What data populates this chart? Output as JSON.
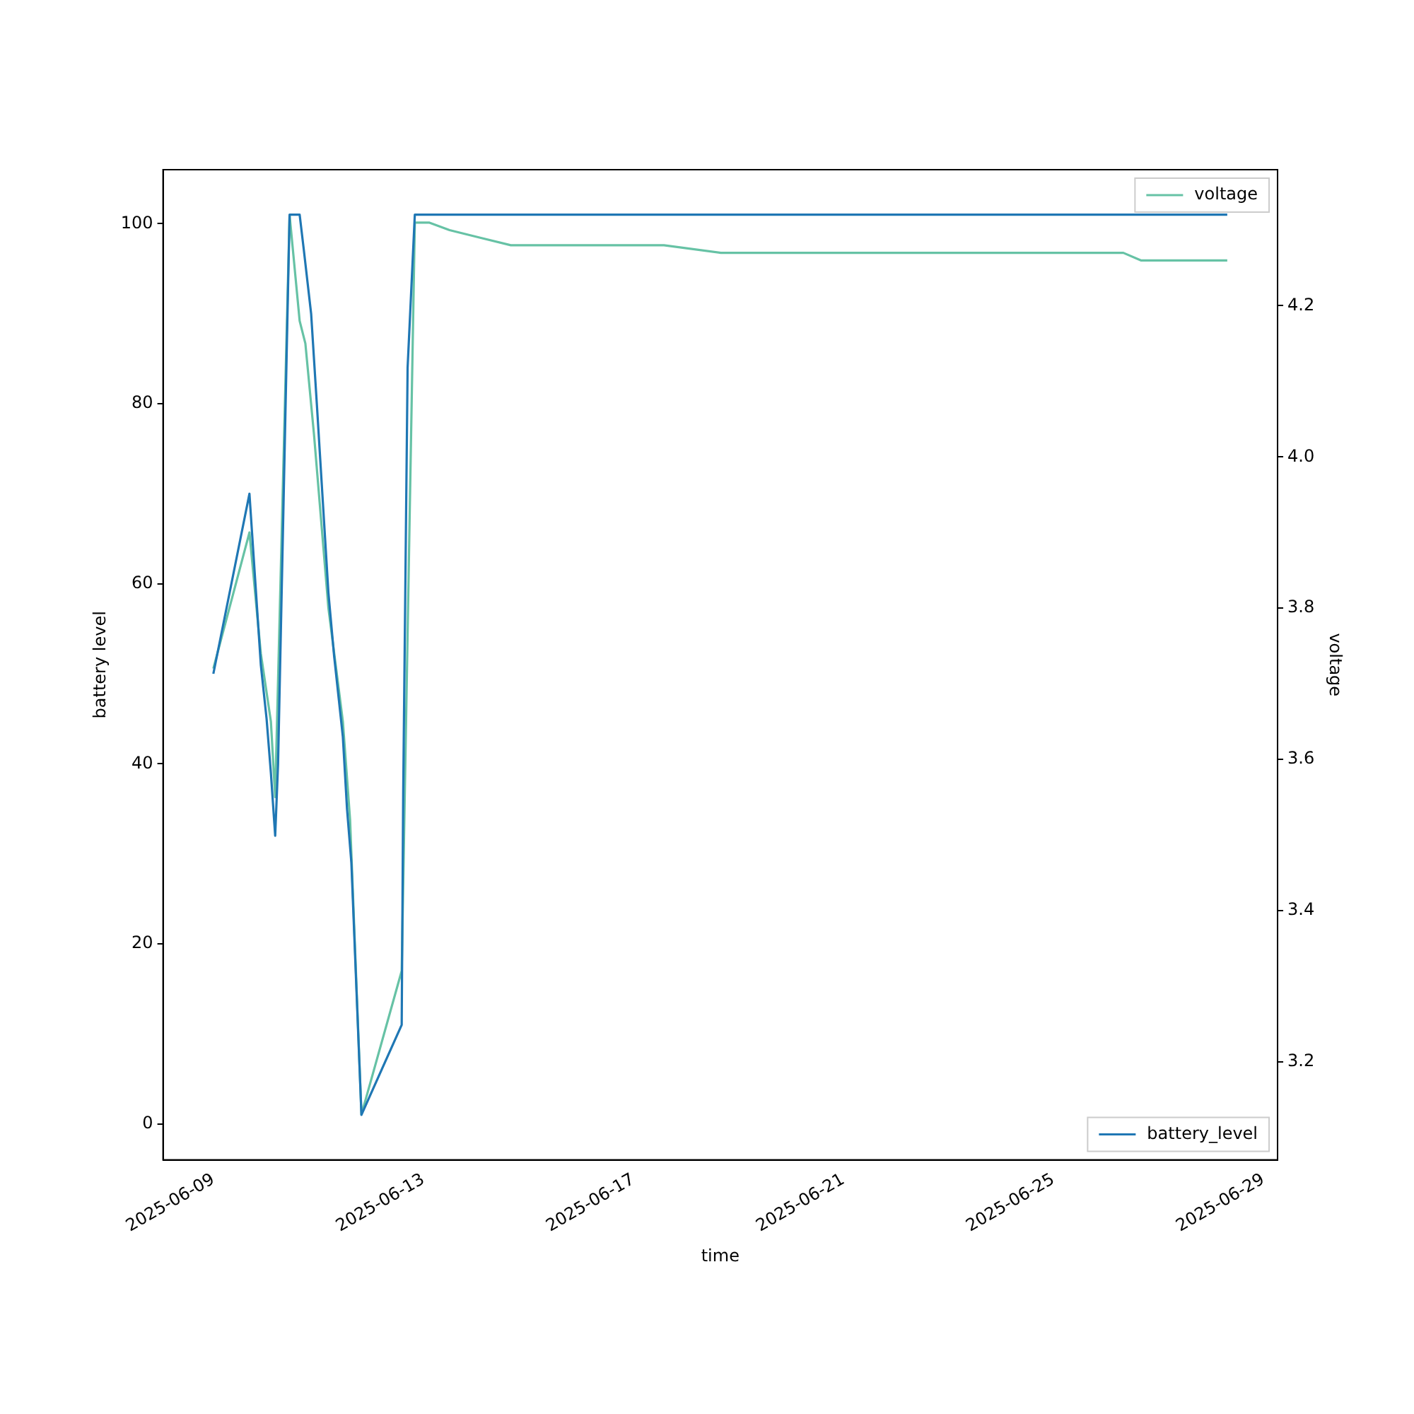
{
  "chart_data": {
    "type": "line",
    "xlabel": "time",
    "ylabel": "battery level",
    "y2label": "voltage",
    "xlim": [
      "2025-06-08T01:00",
      "2025-06-29T06:30"
    ],
    "xticks": [
      "2025-06-09",
      "2025-06-13",
      "2025-06-17",
      "2025-06-21",
      "2025-06-25",
      "2025-06-29"
    ],
    "ylim": [
      -4,
      106
    ],
    "yticks": [
      0,
      20,
      40,
      60,
      80,
      100
    ],
    "y2lim": [
      3.07,
      4.38
    ],
    "y2ticks": [
      3.2,
      3.4,
      3.6,
      3.8,
      {
        "value": 4.0,
        "label": "4.0"
      },
      4.2
    ],
    "legend": "right",
    "grid": false,
    "marker": "none",
    "line_style": "solid",
    "series": [
      {
        "name": "battery_level",
        "color": "#1f77b4",
        "axis": "y",
        "x": [
          "2025-06-09T00:00",
          "2025-06-09T16:30",
          "2025-06-09T21:42",
          "2025-06-10T00:20",
          "2025-06-10T02:18",
          "2025-06-10T04:16",
          "2025-06-10T05:35",
          "2025-06-10T10:51",
          "2025-06-10T15:27",
          "2025-06-10T17:24",
          "2025-06-10T20:42",
          "2025-06-10T23:18",
          "2025-06-11T04:36",
          "2025-06-11T07:12",
          "2025-06-11T11:12",
          "2025-06-11T13:06",
          "2025-06-11T15:06",
          "2025-06-11T19:42",
          "2025-06-12T14:06",
          "2025-06-12T14:48",
          "2025-06-12T16:48",
          "2025-06-12T20:06",
          "2025-06-28T07:30"
        ],
        "values": [
          50,
          70,
          51,
          45,
          39,
          32,
          40,
          101,
          101,
          97,
          90,
          80,
          59,
          52,
          43,
          35,
          29,
          1,
          11,
          37,
          84,
          101,
          101
        ]
      },
      {
        "name": "voltage",
        "color": "#66c2a5",
        "axis": "y2",
        "x": [
          "2025-06-09T00:00",
          "2025-06-09T16:30",
          "2025-06-09T21:42",
          "2025-06-10T02:18",
          "2025-06-10T04:16",
          "2025-06-10T10:51",
          "2025-06-10T15:27",
          "2025-06-10T18:04",
          "2025-06-10T22:00",
          "2025-06-11T04:36",
          "2025-06-11T08:34",
          "2025-06-11T11:12",
          "2025-06-11T14:30",
          "2025-06-11T19:42",
          "2025-06-12T14:06",
          "2025-06-12T20:06",
          "2025-06-13T02:36",
          "2025-06-13T12:00",
          "2025-06-14T02:00",
          "2025-06-14T16:00",
          "2025-06-15T16:00",
          "2025-06-16T18:00",
          "2025-06-17T14:00",
          "2025-06-18T16:00",
          "2025-06-19T18:00",
          "2025-06-21T00:00",
          "2025-06-22T04:00",
          "2025-06-23T18:00",
          "2025-06-25T12:00",
          "2025-06-26T08:00",
          "2025-06-26T16:00",
          "2025-06-28T07:30"
        ],
        "values": [
          3.72,
          3.9,
          3.74,
          3.65,
          3.55,
          4.32,
          4.18,
          4.15,
          4.03,
          3.8,
          3.71,
          3.65,
          3.52,
          3.13,
          3.32,
          4.31,
          4.31,
          4.3,
          4.29,
          4.28,
          4.28,
          4.28,
          4.28,
          4.27,
          4.27,
          4.27,
          4.27,
          4.27,
          4.27,
          4.27,
          4.26,
          4.26
        ]
      }
    ]
  }
}
